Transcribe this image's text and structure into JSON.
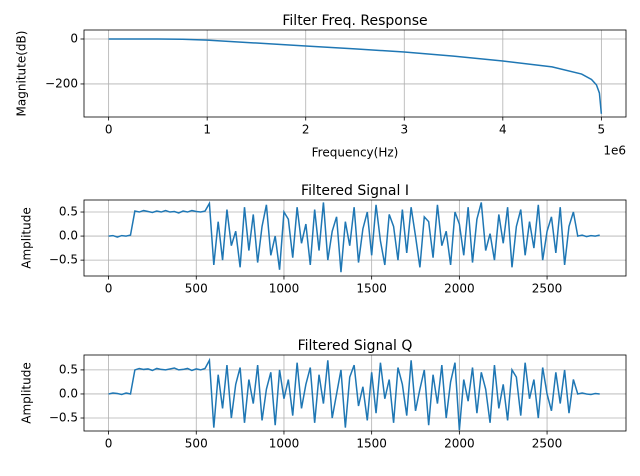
{
  "chart_data": [
    {
      "type": "line",
      "title": "Filter Freq. Response",
      "xlabel": "Frequency(Hz)",
      "ylabel": "Magnitute(dB)",
      "x_offset_label": "1e6",
      "x": [
        0,
        250000,
        500000,
        750000,
        1000000,
        1500000,
        2000000,
        2500000,
        3000000,
        3500000,
        4000000,
        4500000,
        4800000,
        4900000,
        4950000,
        4980000,
        5000000
      ],
      "values": [
        0,
        0,
        0,
        -1,
        -5,
        -18,
        -31,
        -44,
        -58,
        -76,
        -98,
        -124,
        -156,
        -180,
        -204,
        -240,
        -333
      ],
      "color": "#1f77b4",
      "grid": true,
      "xlim": [
        -250000,
        5250000
      ],
      "xticks": [
        0,
        {
          "value": 1000000,
          "label": "1"
        },
        {
          "value": 2000000,
          "label": "2"
        },
        {
          "value": 3000000,
          "label": "3"
        },
        {
          "value": 4000000,
          "label": "4"
        },
        {
          "value": 5000000,
          "label": "5"
        }
      ],
      "ylim": [
        -347,
        40
      ],
      "yticks": [
        0,
        {
          "value": -200,
          "label": "−200"
        }
      ]
    },
    {
      "type": "line",
      "title": "Filtered Signal I",
      "ylabel": "Amplitude",
      "x": [
        0,
        25,
        50,
        75,
        100,
        125,
        150,
        175,
        200,
        225,
        250,
        275,
        300,
        325,
        350,
        375,
        400,
        425,
        450,
        475,
        500,
        525,
        550,
        575,
        600,
        625,
        650,
        675,
        700,
        725,
        750,
        775,
        800,
        825,
        850,
        875,
        900,
        925,
        950,
        975,
        1000,
        1025,
        1050,
        1075,
        1100,
        1125,
        1150,
        1175,
        1200,
        1225,
        1250,
        1275,
        1300,
        1325,
        1350,
        1375,
        1400,
        1425,
        1450,
        1475,
        1500,
        1525,
        1550,
        1575,
        1600,
        1625,
        1650,
        1675,
        1700,
        1725,
        1750,
        1775,
        1800,
        1825,
        1850,
        1875,
        1900,
        1925,
        1950,
        1975,
        2000,
        2025,
        2050,
        2075,
        2100,
        2125,
        2150,
        2175,
        2200,
        2225,
        2250,
        2275,
        2300,
        2325,
        2350,
        2375,
        2400,
        2425,
        2450,
        2475,
        2500,
        2525,
        2550,
        2575,
        2600,
        2625,
        2650,
        2675,
        2700,
        2725,
        2750,
        2775,
        2800
      ],
      "values": [
        0.0,
        0.01,
        -0.02,
        0.01,
        0.0,
        0.02,
        0.52,
        0.5,
        0.53,
        0.51,
        0.49,
        0.52,
        0.5,
        0.53,
        0.5,
        0.51,
        0.48,
        0.52,
        0.5,
        0.53,
        0.51,
        0.5,
        0.52,
        0.68,
        -0.6,
        0.3,
        -0.5,
        0.55,
        -0.2,
        0.1,
        -0.65,
        0.6,
        -0.3,
        0.45,
        -0.55,
        0.2,
        0.65,
        -0.4,
        0.0,
        -0.7,
        0.5,
        0.35,
        -0.45,
        0.6,
        -0.15,
        0.25,
        -0.6,
        0.55,
        -0.3,
        0.7,
        -0.5,
        0.1,
        0.4,
        -0.75,
        0.3,
        -0.2,
        0.6,
        -0.55,
        0.15,
        0.5,
        -0.4,
        0.65,
        -0.1,
        -0.6,
        0.45,
        0.2,
        -0.5,
        0.55,
        -0.35,
        0.6,
        0.0,
        -0.65,
        0.4,
        0.3,
        -0.45,
        0.65,
        -0.2,
        0.1,
        -0.6,
        0.5,
        0.25,
        -0.4,
        0.6,
        -0.55,
        0.35,
        0.7,
        -0.3,
        0.05,
        -0.5,
        0.45,
        -0.15,
        0.6,
        -0.65,
        0.2,
        0.55,
        -0.4,
        0.3,
        -0.25,
        0.65,
        -0.5,
        0.1,
        0.4,
        -0.35,
        0.6,
        -0.6,
        0.2,
        0.5,
        0.0,
        0.02,
        -0.01,
        0.01,
        0.0,
        0.02
      ],
      "color": "#1f77b4",
      "grid": true,
      "xlim": [
        -140,
        2950
      ],
      "xticks": [
        0,
        500,
        1000,
        1500,
        2000,
        2500
      ],
      "ylim": [
        -0.83,
        0.75
      ],
      "yticks": [
        0.5,
        {
          "value": 0,
          "label": "0.0"
        },
        {
          "value": -0.5,
          "label": "−0.5"
        }
      ]
    },
    {
      "type": "line",
      "title": "Filtered Signal Q",
      "ylabel": "Amplitude",
      "x": [
        0,
        25,
        50,
        75,
        100,
        125,
        150,
        175,
        200,
        225,
        250,
        275,
        300,
        325,
        350,
        375,
        400,
        425,
        450,
        475,
        500,
        525,
        550,
        575,
        600,
        625,
        650,
        675,
        700,
        725,
        750,
        775,
        800,
        825,
        850,
        875,
        900,
        925,
        950,
        975,
        1000,
        1025,
        1050,
        1075,
        1100,
        1125,
        1150,
        1175,
        1200,
        1225,
        1250,
        1275,
        1300,
        1325,
        1350,
        1375,
        1400,
        1425,
        1450,
        1475,
        1500,
        1525,
        1550,
        1575,
        1600,
        1625,
        1650,
        1675,
        1700,
        1725,
        1750,
        1775,
        1800,
        1825,
        1850,
        1875,
        1900,
        1925,
        1950,
        1975,
        2000,
        2025,
        2050,
        2075,
        2100,
        2125,
        2150,
        2175,
        2200,
        2225,
        2250,
        2275,
        2300,
        2325,
        2350,
        2375,
        2400,
        2425,
        2450,
        2475,
        2500,
        2525,
        2550,
        2575,
        2600,
        2625,
        2650,
        2675,
        2700,
        2725,
        2750,
        2775,
        2800
      ],
      "values": [
        0.0,
        0.02,
        0.01,
        -0.01,
        0.02,
        0.0,
        0.5,
        0.53,
        0.51,
        0.52,
        0.49,
        0.53,
        0.51,
        0.5,
        0.52,
        0.54,
        0.5,
        0.51,
        0.53,
        0.49,
        0.52,
        0.5,
        0.53,
        0.7,
        -0.7,
        0.4,
        -0.3,
        0.6,
        -0.5,
        0.2,
        0.55,
        -0.6,
        0.3,
        -0.2,
        0.6,
        -0.55,
        0.1,
        0.45,
        -0.65,
        0.5,
        -0.1,
        0.3,
        -0.45,
        0.65,
        -0.3,
        0.2,
        0.55,
        -0.6,
        0.4,
        -0.2,
        0.7,
        -0.5,
        0.0,
        0.5,
        -0.7,
        0.35,
        0.6,
        -0.25,
        0.15,
        -0.55,
        0.45,
        -0.4,
        0.65,
        -0.1,
        0.3,
        -0.6,
        0.55,
        0.2,
        -0.45,
        0.7,
        -0.35,
        0.1,
        0.5,
        -0.65,
        0.4,
        -0.2,
        0.6,
        -0.5,
        0.25,
        0.65,
        -0.75,
        0.3,
        -0.15,
        0.55,
        -0.4,
        0.45,
        0.1,
        -0.6,
        0.6,
        -0.3,
        0.2,
        -0.55,
        0.5,
        0.35,
        -0.45,
        0.65,
        -0.1,
        0.3,
        -0.5,
        0.55,
        0.0,
        -0.35,
        0.45,
        -0.2,
        0.5,
        -0.4,
        0.3,
        0.0,
        0.02,
        0.0,
        -0.01,
        0.01,
        0.0
      ],
      "color": "#1f77b4",
      "grid": true,
      "xlim": [
        -140,
        2950
      ],
      "xticks": [
        0,
        500,
        1000,
        1500,
        2000,
        2500
      ],
      "ylim": [
        -0.77,
        0.81
      ],
      "yticks": [
        0.5,
        {
          "value": 0,
          "label": "0.0"
        },
        {
          "value": -0.5,
          "label": "−0.5"
        }
      ]
    }
  ]
}
